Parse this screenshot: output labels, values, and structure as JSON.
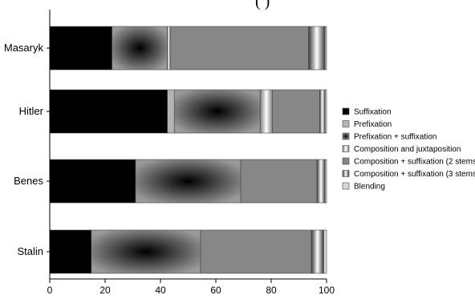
{
  "chart_data": {
    "type": "bar",
    "orientation": "horizontal",
    "stacked": true,
    "title": "",
    "xlabel": "",
    "ylabel": "",
    "xlim": [
      0,
      100
    ],
    "xticks": [
      "0",
      "20",
      "40",
      "60",
      "80",
      "100"
    ],
    "categories": [
      "Masaryk",
      "Hitler",
      "Benes",
      "Stalin"
    ],
    "series": [
      {
        "name": "Suffixation",
        "values": [
          22.5,
          42.5,
          31,
          15
        ],
        "style": "solid",
        "color": "#000000"
      },
      {
        "name": "Prefixation",
        "values": [
          0,
          2.5,
          0,
          0
        ],
        "style": "solid",
        "color": "#b4b4b4"
      },
      {
        "name": "Prefixation + suffixation",
        "values": [
          20,
          31,
          38,
          39.5
        ],
        "style": "radial",
        "color": "#000000",
        "color2": "#9a9a9a"
      },
      {
        "name": "Composition and juxtaposition",
        "values": [
          1,
          4.5,
          0,
          0
        ],
        "style": "vbar",
        "color": "#7c7c7c",
        "color2": "#ffffff"
      },
      {
        "name": "Composition + suffixation (2 stems)",
        "values": [
          50,
          17,
          27.5,
          40
        ],
        "style": "solid",
        "color": "#878787"
      },
      {
        "name": "Composition + suffixation (3 stems)",
        "values": [
          6,
          2,
          3,
          4.5
        ],
        "style": "vbar",
        "color": "#3a3a3a",
        "color2": "#ffffff"
      },
      {
        "name": "Blending",
        "values": [
          0.5,
          0.5,
          0.5,
          1
        ],
        "style": "solid",
        "color": "#d9d9d9"
      }
    ],
    "legend_position": "right",
    "grid": false
  },
  "title_fragment": "(                   )"
}
